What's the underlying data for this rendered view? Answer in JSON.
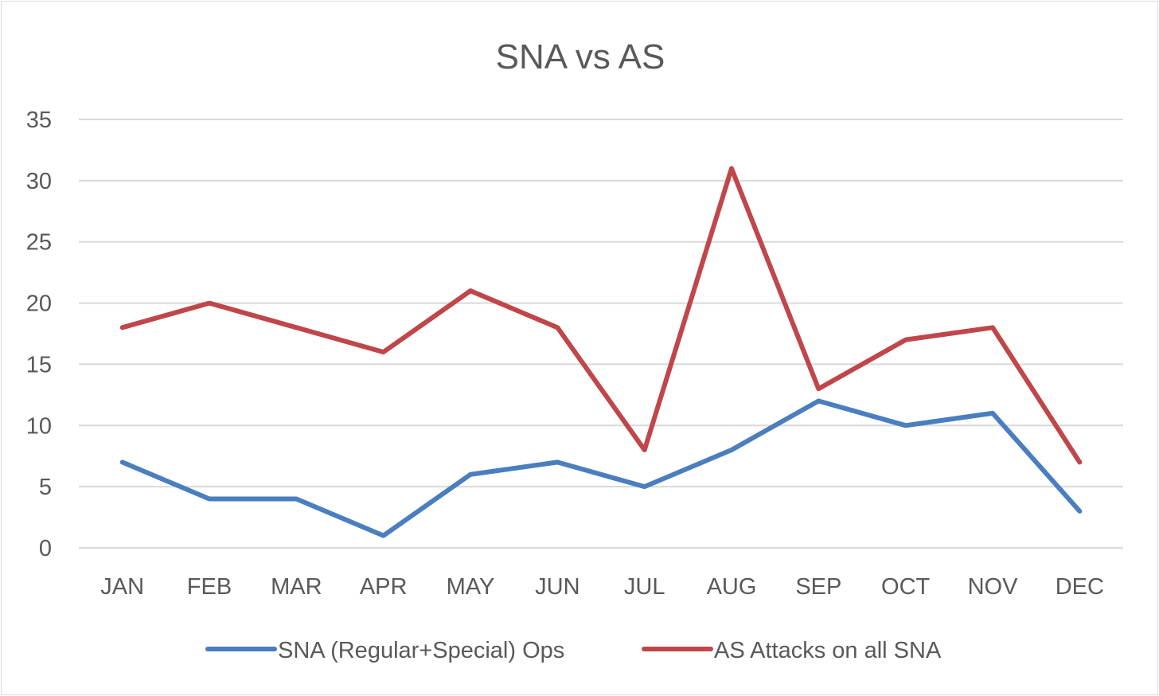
{
  "chart_data": {
    "type": "line",
    "title": "SNA vs AS",
    "categories": [
      "JAN",
      "FEB",
      "MAR",
      "APR",
      "MAY",
      "JUN",
      "JUL",
      "AUG",
      "SEP",
      "OCT",
      "NOV",
      "DEC"
    ],
    "series": [
      {
        "name": "SNA (Regular+Special) Ops",
        "color": "#4a7ebf",
        "values": [
          7,
          4,
          4,
          1,
          6,
          7,
          5,
          8,
          12,
          10,
          11,
          3
        ]
      },
      {
        "name": "AS Attacks on all SNA",
        "color": "#c0464a",
        "values": [
          18,
          20,
          18,
          16,
          21,
          18,
          8,
          31,
          13,
          17,
          18,
          7
        ]
      }
    ],
    "ylim": [
      0,
      35
    ],
    "yticks": [
      0,
      5,
      10,
      15,
      20,
      25,
      30,
      35
    ],
    "grid": true,
    "legend": "bottom"
  }
}
